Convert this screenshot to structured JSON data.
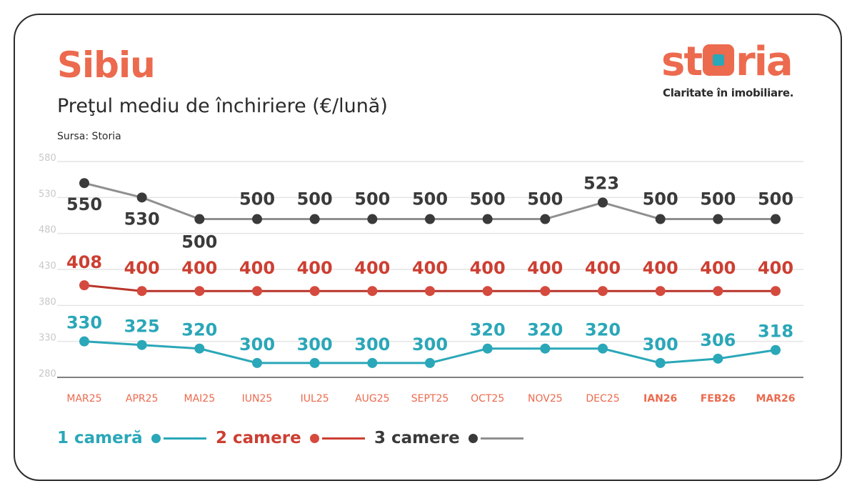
{
  "header": {
    "city": "Sibiu",
    "subtitle": "Preţul mediu de închiriere (€/lună)",
    "source": "Sursa: Storia"
  },
  "logo": {
    "word_left": "st",
    "word_right": "ria",
    "tagline": "Claritate în imobiliare."
  },
  "colors": {
    "accent": "#ec6a4e",
    "one_room": "#2aa7b8",
    "two_rooms": "#cc3f32",
    "three_rooms_line": "#8f8f8f",
    "three_rooms_marker": "#3a3a3a",
    "grid": "#e4e4e4",
    "axis_label": "#c8c8c8"
  },
  "chart_data": {
    "type": "line",
    "categories": [
      "MAR25",
      "APR25",
      "MAI25",
      "IUN25",
      "IUL25",
      "AUG25",
      "SEPT25",
      "OCT25",
      "NOV25",
      "DEC25",
      "IAN26",
      "FEB26",
      "MAR26"
    ],
    "bold_categories": [
      "IAN26",
      "FEB26",
      "MAR26"
    ],
    "y_ticks": [
      580,
      530,
      480,
      430,
      380,
      330,
      280
    ],
    "ylim": [
      280,
      580
    ],
    "grid": true,
    "legend_position": "bottom-left",
    "series": [
      {
        "name": "1 cameră",
        "color": "#2aa7b8",
        "marker": "#2aa7b8",
        "values": [
          330,
          325,
          320,
          300,
          300,
          300,
          300,
          320,
          320,
          320,
          300,
          306,
          318
        ]
      },
      {
        "name": "2 camere",
        "color": "#b8342a",
        "marker": "#d54a3e",
        "values": [
          408,
          400,
          400,
          400,
          400,
          400,
          400,
          400,
          400,
          400,
          400,
          400,
          400
        ]
      },
      {
        "name": "3 camere",
        "color": "#8f8f8f",
        "marker": "#3a3a3a",
        "values": [
          550,
          530,
          500,
          500,
          500,
          500,
          500,
          500,
          500,
          523,
          500,
          500,
          500
        ]
      }
    ]
  }
}
